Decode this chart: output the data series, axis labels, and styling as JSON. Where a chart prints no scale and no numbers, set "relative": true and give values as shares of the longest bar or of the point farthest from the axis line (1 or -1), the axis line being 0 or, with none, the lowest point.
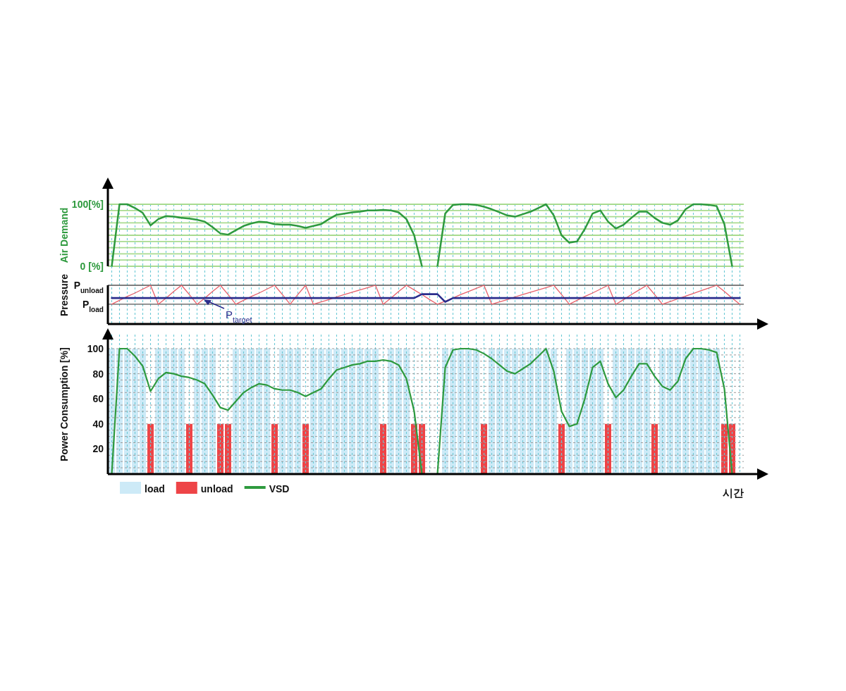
{
  "chart_data": [
    {
      "type": "line",
      "ylabel": "Air Demand",
      "categories": [
        null,
        null,
        null,
        null,
        null,
        null,
        null,
        null,
        null,
        null,
        null,
        null,
        null,
        null,
        null,
        null,
        null,
        null,
        null,
        null,
        null,
        null,
        null,
        null,
        null,
        null,
        null,
        null,
        null,
        null,
        null,
        null,
        null,
        null,
        null,
        null,
        null,
        null,
        null,
        null,
        null,
        null,
        null,
        null,
        null,
        null,
        null,
        null,
        null,
        null,
        null,
        null,
        null,
        null,
        null,
        null,
        null,
        null,
        null,
        null,
        null,
        null,
        null,
        null,
        null,
        null,
        null,
        null,
        null,
        null,
        null,
        null,
        null,
        null,
        null,
        null,
        null,
        null,
        null,
        null,
        null,
        null
      ],
      "series": [
        {
          "color": "#2e9a3e",
          "values": [
            0,
            100,
            100,
            94,
            86,
            66,
            76,
            81,
            80,
            78,
            77,
            75,
            72,
            63,
            53,
            51,
            58,
            65,
            69,
            72,
            71,
            68,
            67,
            67,
            65,
            62,
            65,
            68,
            76,
            83,
            85,
            87,
            88,
            90,
            90,
            91,
            90,
            87,
            76,
            50,
            0,
            null,
            0,
            85,
            99,
            100,
            100,
            99,
            96,
            92,
            87,
            82,
            80,
            84,
            88,
            94,
            100,
            82,
            50,
            38,
            40,
            60,
            85,
            90,
            72,
            61,
            67,
            78,
            88,
            88,
            78,
            70,
            67,
            74,
            92,
            100,
            100,
            99,
            97,
            68,
            0,
            null
          ]
        }
      ],
      "ylim": [
        0,
        100
      ],
      "yticks": [
        {
          "value": 0,
          "label": "0 [%]"
        },
        {
          "value": 10,
          "label": null
        },
        {
          "value": 20,
          "label": null
        },
        {
          "value": 30,
          "label": null
        },
        {
          "value": 40,
          "label": null
        },
        {
          "value": 50,
          "label": null
        },
        {
          "value": 60,
          "label": null
        },
        {
          "value": 70,
          "label": null
        },
        {
          "value": 80,
          "label": null
        },
        {
          "value": 90,
          "label": null
        },
        {
          "value": 100,
          "label": "100[%]"
        }
      ],
      "grid": true
    },
    {
      "type": "line",
      "ylabel": "Pressure",
      "relative": true,
      "categories": [
        null,
        null,
        null,
        null,
        null,
        null,
        null,
        null,
        null,
        null,
        null,
        null,
        null,
        null,
        null,
        null,
        null,
        null,
        null,
        null,
        null,
        null,
        null,
        null,
        null,
        null,
        null,
        null,
        null,
        null,
        null,
        null,
        null,
        null,
        null,
        null,
        null,
        null,
        null,
        null,
        null,
        null,
        null,
        null,
        null,
        null,
        null,
        null,
        null,
        null,
        null,
        null,
        null,
        null,
        null,
        null,
        null,
        null,
        null,
        null,
        null,
        null,
        null,
        null,
        null,
        null,
        null,
        null,
        null,
        null,
        null,
        null,
        null,
        null,
        null,
        null,
        null,
        null,
        null,
        null,
        null,
        null
      ],
      "series": [
        {
          "color": "#e8606a",
          "values": [
            0.51,
            0.61,
            0.71,
            0.8,
            0.9,
            1,
            0.51,
            0.67,
            0.84,
            1,
            0.76,
            0.51,
            0.67,
            0.84,
            1,
            0.76,
            0.51,
            0.61,
            0.71,
            0.8,
            0.9,
            1,
            0.76,
            0.51,
            0.76,
            1,
            0.51,
            0.57,
            0.63,
            0.7,
            0.76,
            0.82,
            0.88,
            0.94,
            1,
            0.51,
            0.67,
            0.84,
            1,
            0.88,
            0.76,
            0.63,
            0.51,
            0.59,
            0.67,
            0.76,
            0.84,
            0.92,
            1,
            0.51,
            0.57,
            0.63,
            0.7,
            0.76,
            0.82,
            0.88,
            0.94,
            1,
            0.76,
            0.51,
            0.61,
            0.71,
            0.8,
            0.9,
            1,
            0.51,
            0.63,
            0.76,
            0.88,
            1,
            0.76,
            0.51,
            0.58,
            0.65,
            0.72,
            0.79,
            0.86,
            0.93,
            1,
            0.84,
            0.67,
            0.51
          ]
        },
        {
          "color": "#2b2d8c",
          "values": [
            0.67,
            0.67,
            0.67,
            0.67,
            0.67,
            0.67,
            0.67,
            0.67,
            0.67,
            0.67,
            0.67,
            0.67,
            0.67,
            0.67,
            0.67,
            0.67,
            0.67,
            0.67,
            0.67,
            0.67,
            0.67,
            0.67,
            0.67,
            0.67,
            0.67,
            0.67,
            0.67,
            0.67,
            0.67,
            0.67,
            0.67,
            0.67,
            0.67,
            0.67,
            0.67,
            0.67,
            0.67,
            0.67,
            0.67,
            0.67,
            0.77,
            0.77,
            0.77,
            0.57,
            0.67,
            0.67,
            0.67,
            0.67,
            0.67,
            0.67,
            0.67,
            0.67,
            0.67,
            0.67,
            0.67,
            0.67,
            0.67,
            0.67,
            0.67,
            0.67,
            0.67,
            0.67,
            0.67,
            0.67,
            0.67,
            0.67,
            0.67,
            0.67,
            0.67,
            0.67,
            0.67,
            0.67,
            0.67,
            0.67,
            0.67,
            0.67,
            0.67,
            0.67,
            0.67,
            0.67,
            0.67,
            0.67
          ]
        }
      ],
      "ref_lines": [
        {
          "axis": "y",
          "value": 1,
          "label": "P$_{unload}$",
          "color": "#555555"
        },
        {
          "axis": "y",
          "value": 0.51,
          "label": "P$_{load}$",
          "color": "#555555"
        }
      ],
      "grid": "x",
      "annotations": [
        {
          "text": "P$_{target}$",
          "y": 0.67
        }
      ]
    },
    {
      "type": "bar",
      "ylabel": "Power Consumption [%]",
      "xlabel": "시간",
      "categories": [
        null,
        null,
        null,
        null,
        null,
        null,
        null,
        null,
        null,
        null,
        null,
        null,
        null,
        null,
        null,
        null,
        null,
        null,
        null,
        null,
        null,
        null,
        null,
        null,
        null,
        null,
        null,
        null,
        null,
        null,
        null,
        null,
        null,
        null,
        null,
        null,
        null,
        null,
        null,
        null,
        null,
        null,
        null,
        null,
        null,
        null,
        null,
        null,
        null,
        null,
        null,
        null,
        null,
        null,
        null,
        null,
        null,
        null,
        null,
        null,
        null,
        null,
        null,
        null,
        null,
        null,
        null,
        null,
        null,
        null,
        null,
        null,
        null,
        null,
        null,
        null,
        null,
        null,
        null,
        null,
        null,
        null
      ],
      "series": [
        {
          "name": "load",
          "color": "#cdeaf7",
          "values": [
            100,
            100,
            100,
            100,
            100,
            null,
            100,
            100,
            100,
            100,
            null,
            100,
            100,
            100,
            null,
            null,
            100,
            100,
            100,
            100,
            100,
            null,
            100,
            100,
            100,
            null,
            100,
            100,
            100,
            100,
            100,
            100,
            100,
            100,
            100,
            null,
            100,
            100,
            100,
            null,
            null,
            null,
            null,
            100,
            100,
            100,
            100,
            100,
            null,
            100,
            100,
            100,
            100,
            100,
            100,
            100,
            100,
            100,
            null,
            100,
            100,
            100,
            100,
            100,
            null,
            100,
            100,
            100,
            100,
            100,
            null,
            100,
            100,
            100,
            100,
            100,
            100,
            100,
            100,
            null,
            null,
            null
          ]
        },
        {
          "name": "unload",
          "color": "#ee4447",
          "values": [
            null,
            null,
            null,
            null,
            null,
            40,
            null,
            null,
            null,
            null,
            40,
            null,
            null,
            null,
            40,
            40,
            null,
            null,
            null,
            null,
            null,
            40,
            null,
            null,
            null,
            40,
            null,
            null,
            null,
            null,
            null,
            null,
            null,
            null,
            null,
            40,
            null,
            null,
            null,
            40,
            40,
            null,
            null,
            null,
            null,
            null,
            null,
            null,
            40,
            null,
            null,
            null,
            null,
            null,
            null,
            null,
            null,
            null,
            40,
            null,
            null,
            null,
            null,
            null,
            40,
            null,
            null,
            null,
            null,
            null,
            40,
            null,
            null,
            null,
            null,
            null,
            null,
            null,
            null,
            40,
            40,
            null
          ]
        },
        {
          "name": "VSD",
          "type": "line",
          "color": "#2e9a3e",
          "values": [
            0,
            100,
            100,
            94,
            86,
            66,
            76,
            81,
            80,
            78,
            77,
            75,
            72,
            63,
            53,
            51,
            58,
            65,
            69,
            72,
            71,
            68,
            67,
            67,
            65,
            62,
            65,
            68,
            76,
            83,
            85,
            87,
            88,
            90,
            90,
            91,
            90,
            87,
            76,
            50,
            0,
            null,
            0,
            85,
            99,
            100,
            100,
            99,
            96,
            92,
            87,
            82,
            80,
            84,
            88,
            94,
            100,
            82,
            50,
            38,
            40,
            60,
            85,
            90,
            72,
            61,
            67,
            78,
            88,
            88,
            78,
            70,
            67,
            74,
            92,
            100,
            100,
            99,
            97,
            68,
            0,
            null
          ]
        }
      ],
      "ylim": [
        0,
        100
      ],
      "yticks": [
        {
          "value": 5,
          "label": null
        },
        {
          "value": 10,
          "label": null
        },
        {
          "value": 15,
          "label": null
        },
        20,
        {
          "value": 25,
          "label": null
        },
        {
          "value": 30,
          "label": null
        },
        {
          "value": 35,
          "label": null
        },
        40,
        {
          "value": 45,
          "label": null
        },
        {
          "value": 50,
          "label": null
        },
        {
          "value": 55,
          "label": null
        },
        60,
        {
          "value": 65,
          "label": null
        },
        {
          "value": 70,
          "label": null
        },
        {
          "value": 75,
          "label": null
        },
        80,
        {
          "value": 85,
          "label": null
        },
        {
          "value": 90,
          "label": null
        },
        {
          "value": 95,
          "label": null
        },
        100
      ],
      "grid": true,
      "legend": "bottom"
    }
  ]
}
